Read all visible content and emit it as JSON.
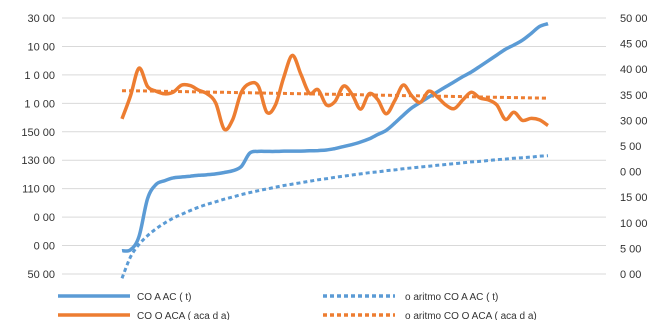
{
  "chart_data": {
    "type": "line",
    "title": "",
    "xlabel": "",
    "ylabel": "",
    "grid": true,
    "legend_position": "bottom",
    "y_left_ticks": [
      "50 00",
      "0 00",
      "0 00",
      "110 00",
      "130 00",
      "150 00",
      "1 0 00",
      "1 0 00",
      "10 00",
      "30 00"
    ],
    "y_right_ticks": [
      "0 00",
      "5 00",
      "10 00",
      "15 00",
      "0 00",
      "5 00",
      "30 00",
      "35 00",
      "40 00",
      "45 00",
      "50 00"
    ],
    "ylim_left_index": [
      0,
      9
    ],
    "ylim_right": [
      0,
      50
    ],
    "x": [
      0,
      2,
      4,
      6,
      8,
      10,
      12,
      14,
      16,
      18,
      20,
      22,
      24,
      26,
      28,
      30,
      32,
      34,
      36,
      38,
      40,
      42,
      44,
      46,
      48,
      50,
      52,
      54,
      56,
      58,
      60,
      62,
      64,
      66,
      68,
      70,
      72,
      74,
      76,
      78,
      80,
      82,
      84,
      86,
      88,
      90,
      92,
      94,
      96,
      98,
      100
    ],
    "series": [
      {
        "name": "CO A AC ( t)",
        "axis": "left",
        "color": "#5b9bd5",
        "style": "solid",
        "values": [
          0.82,
          0.85,
          1.32,
          2.65,
          3.15,
          3.28,
          3.38,
          3.41,
          3.44,
          3.47,
          3.49,
          3.52,
          3.57,
          3.63,
          3.78,
          4.25,
          4.31,
          4.31,
          4.31,
          4.32,
          4.32,
          4.32,
          4.33,
          4.34,
          4.36,
          4.41,
          4.48,
          4.55,
          4.64,
          4.75,
          4.9,
          5.05,
          5.3,
          5.58,
          5.84,
          6.03,
          6.22,
          6.4,
          6.58,
          6.76,
          6.94,
          7.1,
          7.3,
          7.5,
          7.7,
          7.9,
          8.05,
          8.22,
          8.45,
          8.7,
          8.8
        ]
      },
      {
        "name": "o aritmo CO A AC ( t)",
        "axis": "left",
        "color": "#5b9bd5",
        "style": "dashed",
        "values": [
          -0.15,
          0.6,
          1.04,
          1.35,
          1.59,
          1.79,
          1.96,
          2.1,
          2.23,
          2.35,
          2.45,
          2.54,
          2.63,
          2.71,
          2.79,
          2.86,
          2.93,
          2.99,
          3.05,
          3.11,
          3.16,
          3.21,
          3.26,
          3.31,
          3.35,
          3.4,
          3.44,
          3.48,
          3.52,
          3.56,
          3.59,
          3.63,
          3.66,
          3.7,
          3.73,
          3.76,
          3.79,
          3.82,
          3.85,
          3.88,
          3.91,
          3.94,
          3.96,
          3.99,
          4.02,
          4.04,
          4.07,
          4.09,
          4.11,
          4.14,
          4.16
        ]
      },
      {
        "name": "CO O ACA ( aca d a)",
        "axis": "right",
        "color": "#ed7d31",
        "style": "solid",
        "values": [
          30.3,
          34.8,
          40.2,
          36.6,
          35.7,
          35.2,
          35.5,
          36.9,
          36.8,
          35.9,
          35.2,
          33.4,
          28.3,
          30.2,
          35.5,
          37.2,
          36.7,
          31.6,
          33.0,
          38.5,
          42.7,
          39.0,
          35.3,
          36.0,
          33.0,
          33.7,
          36.7,
          35.1,
          32.2,
          35.2,
          34.1,
          31.3,
          33.8,
          36.9,
          34.8,
          33.5,
          35.7,
          34.6,
          33.0,
          32.3,
          34.0,
          35.5,
          34.4,
          34.0,
          33.0,
          30.2,
          31.6,
          30.0,
          30.4,
          30.1,
          29.0
        ]
      },
      {
        "name": "o aritmo CO O ACA ( aca d a)",
        "axis": "right",
        "color": "#ed7d31",
        "style": "dashed",
        "values": [
          35.8,
          35.79,
          35.77,
          35.75,
          35.72,
          35.69,
          35.66,
          35.63,
          35.6,
          35.57,
          35.54,
          35.51,
          35.48,
          35.45,
          35.42,
          35.39,
          35.36,
          35.33,
          35.3,
          35.27,
          35.24,
          35.21,
          35.18,
          35.15,
          35.12,
          35.09,
          35.06,
          35.03,
          35.0,
          34.97,
          34.94,
          34.91,
          34.88,
          34.85,
          34.82,
          34.79,
          34.76,
          34.73,
          34.7,
          34.67,
          34.64,
          34.61,
          34.58,
          34.55,
          34.52,
          34.49,
          34.46,
          34.43,
          34.4,
          34.37,
          34.34
        ]
      }
    ]
  }
}
